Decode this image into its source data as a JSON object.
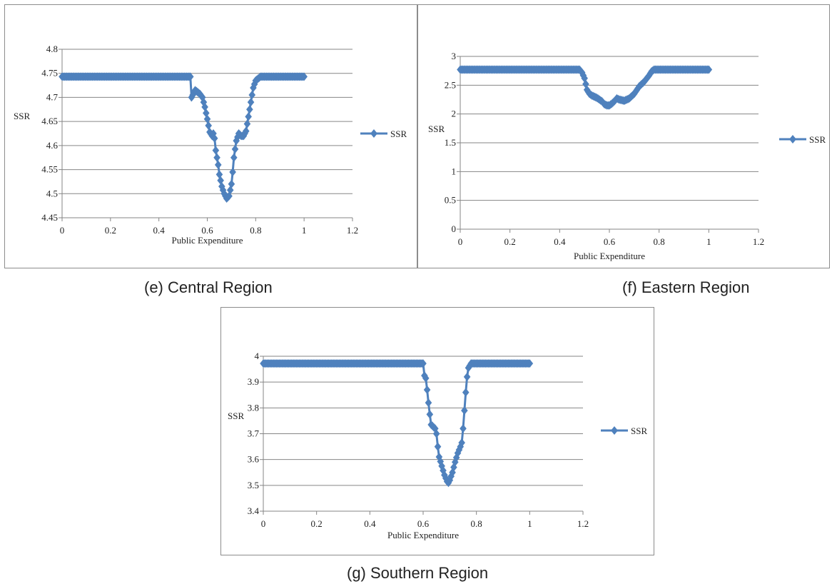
{
  "chart_data": [
    {
      "id": "e",
      "type": "line",
      "caption": "(e) Central Region",
      "xlabel": "Public Expenditure",
      "ylabel": "SSR",
      "xlim": [
        0,
        1.2
      ],
      "ylim": [
        4.45,
        4.8
      ],
      "xticks": [
        "0",
        "0.2",
        "0.4",
        "0.6",
        "0.8",
        "1",
        "1.2"
      ],
      "yticks": [
        "4.45",
        "4.5",
        "4.55",
        "4.6",
        "4.65",
        "4.7",
        "4.75",
        "4.8"
      ],
      "grid": true,
      "legend_position": "right",
      "color": "#4f81bd",
      "series": [
        {
          "name": "SSR",
          "x": [
            0,
            0.53,
            0.535,
            0.54,
            0.55,
            0.57,
            0.58,
            0.59,
            0.6,
            0.61,
            0.62,
            0.625,
            0.63,
            0.635,
            0.64,
            0.645,
            0.65,
            0.66,
            0.67,
            0.675,
            0.68,
            0.69,
            0.7,
            0.705,
            0.71,
            0.72,
            0.73,
            0.74,
            0.75,
            0.76,
            0.77,
            0.78,
            0.79,
            0.8,
            0.82,
            0.85,
            1.0
          ],
          "y": [
            4.743,
            4.743,
            4.7,
            4.705,
            4.715,
            4.707,
            4.7,
            4.68,
            4.655,
            4.628,
            4.62,
            4.625,
            4.615,
            4.59,
            4.575,
            4.56,
            4.54,
            4.515,
            4.5,
            4.495,
            4.49,
            4.495,
            4.52,
            4.545,
            4.575,
            4.61,
            4.625,
            4.62,
            4.62,
            4.63,
            4.66,
            4.69,
            4.72,
            4.735,
            4.743,
            4.743,
            4.743
          ]
        }
      ]
    },
    {
      "id": "f",
      "type": "line",
      "caption": "(f) Eastern Region",
      "xlabel": "Public Expenditure",
      "ylabel": "SSR",
      "xlim": [
        0,
        1.2
      ],
      "ylim": [
        0,
        3
      ],
      "xticks": [
        "0",
        "0.2",
        "0.4",
        "0.6",
        "0.8",
        "1",
        "1.2"
      ],
      "yticks": [
        "0",
        "0.5",
        "1",
        "1.5",
        "2",
        "2.5",
        "3"
      ],
      "grid": true,
      "legend_position": "right",
      "color": "#4f81bd",
      "series": [
        {
          "name": "SSR",
          "x": [
            0,
            0.48,
            0.49,
            0.5,
            0.51,
            0.52,
            0.53,
            0.55,
            0.57,
            0.58,
            0.59,
            0.6,
            0.61,
            0.62,
            0.63,
            0.64,
            0.65,
            0.66,
            0.67,
            0.68,
            0.7,
            0.72,
            0.74,
            0.76,
            0.77,
            0.78,
            0.8,
            0.85,
            1.0
          ],
          "y": [
            2.77,
            2.77,
            2.72,
            2.62,
            2.42,
            2.35,
            2.32,
            2.28,
            2.22,
            2.17,
            2.15,
            2.15,
            2.18,
            2.22,
            2.27,
            2.25,
            2.24,
            2.23,
            2.25,
            2.27,
            2.35,
            2.48,
            2.56,
            2.67,
            2.74,
            2.77,
            2.77,
            2.77,
            2.77
          ]
        }
      ]
    },
    {
      "id": "g",
      "type": "line",
      "caption": "(g) Southern Region",
      "xlabel": "Public Expenditure",
      "ylabel": "SSR",
      "xlim": [
        0,
        1.2
      ],
      "ylim": [
        3.4,
        4
      ],
      "xticks": [
        "0",
        "0.2",
        "0.4",
        "0.6",
        "0.8",
        "1",
        "1.2"
      ],
      "yticks": [
        "3.4",
        "3.5",
        "3.6",
        "3.7",
        "3.8",
        "3.9",
        "4"
      ],
      "grid": true,
      "legend_position": "right",
      "color": "#4f81bd",
      "series": [
        {
          "name": "SSR",
          "x": [
            0,
            0.6,
            0.605,
            0.61,
            0.615,
            0.62,
            0.625,
            0.63,
            0.635,
            0.64,
            0.645,
            0.65,
            0.655,
            0.66,
            0.67,
            0.68,
            0.69,
            0.695,
            0.7,
            0.71,
            0.72,
            0.73,
            0.74,
            0.745,
            0.75,
            0.755,
            0.76,
            0.765,
            0.77,
            0.78,
            0.8,
            1.0
          ],
          "y": [
            3.972,
            3.972,
            3.925,
            3.915,
            3.87,
            3.82,
            3.775,
            3.735,
            3.73,
            3.725,
            3.72,
            3.7,
            3.65,
            3.61,
            3.575,
            3.54,
            3.515,
            3.51,
            3.52,
            3.55,
            3.59,
            3.625,
            3.65,
            3.665,
            3.72,
            3.79,
            3.86,
            3.92,
            3.955,
            3.972,
            3.972,
            3.972
          ]
        }
      ]
    }
  ]
}
